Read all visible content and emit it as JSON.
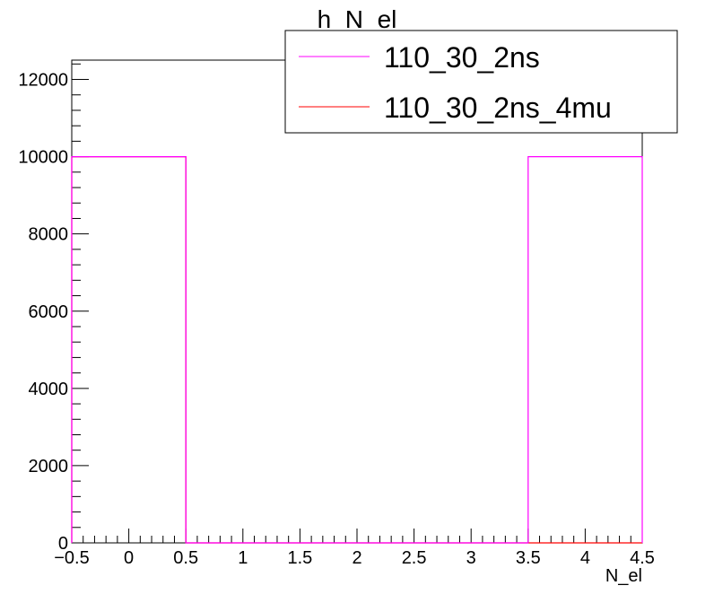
{
  "chart_data": {
    "type": "line",
    "title": "h_N_el",
    "xlabel": "N_el",
    "ylabel": "",
    "xlim": [
      -0.5,
      4.5
    ],
    "ylim": [
      0,
      12500
    ],
    "x_ticks": [
      -0.5,
      0,
      0.5,
      1,
      1.5,
      2,
      2.5,
      3,
      3.5,
      4,
      4.5
    ],
    "x_tick_labels": [
      "−0.5",
      "0",
      "0.5",
      "1",
      "1.5",
      "2",
      "2.5",
      "3",
      "3.5",
      "4",
      "4.5"
    ],
    "y_ticks": [
      0,
      2000,
      4000,
      6000,
      8000,
      10000,
      12000
    ],
    "y_tick_labels": [
      "0",
      "2000",
      "4000",
      "6000",
      "8000",
      "10000",
      "12000"
    ],
    "legend_position": "top-right",
    "bin_edges": [
      -0.5,
      0.5,
      1.5,
      2.5,
      3.5,
      4.5
    ],
    "series": [
      {
        "name": "110_30_2ns",
        "color": "#ff00ff",
        "values": [
          10000,
          0,
          0,
          0,
          10000
        ]
      },
      {
        "name": "110_30_2ns_4mu",
        "color": "#ff0000",
        "values": [
          10000,
          0,
          0,
          0,
          0
        ]
      }
    ]
  }
}
